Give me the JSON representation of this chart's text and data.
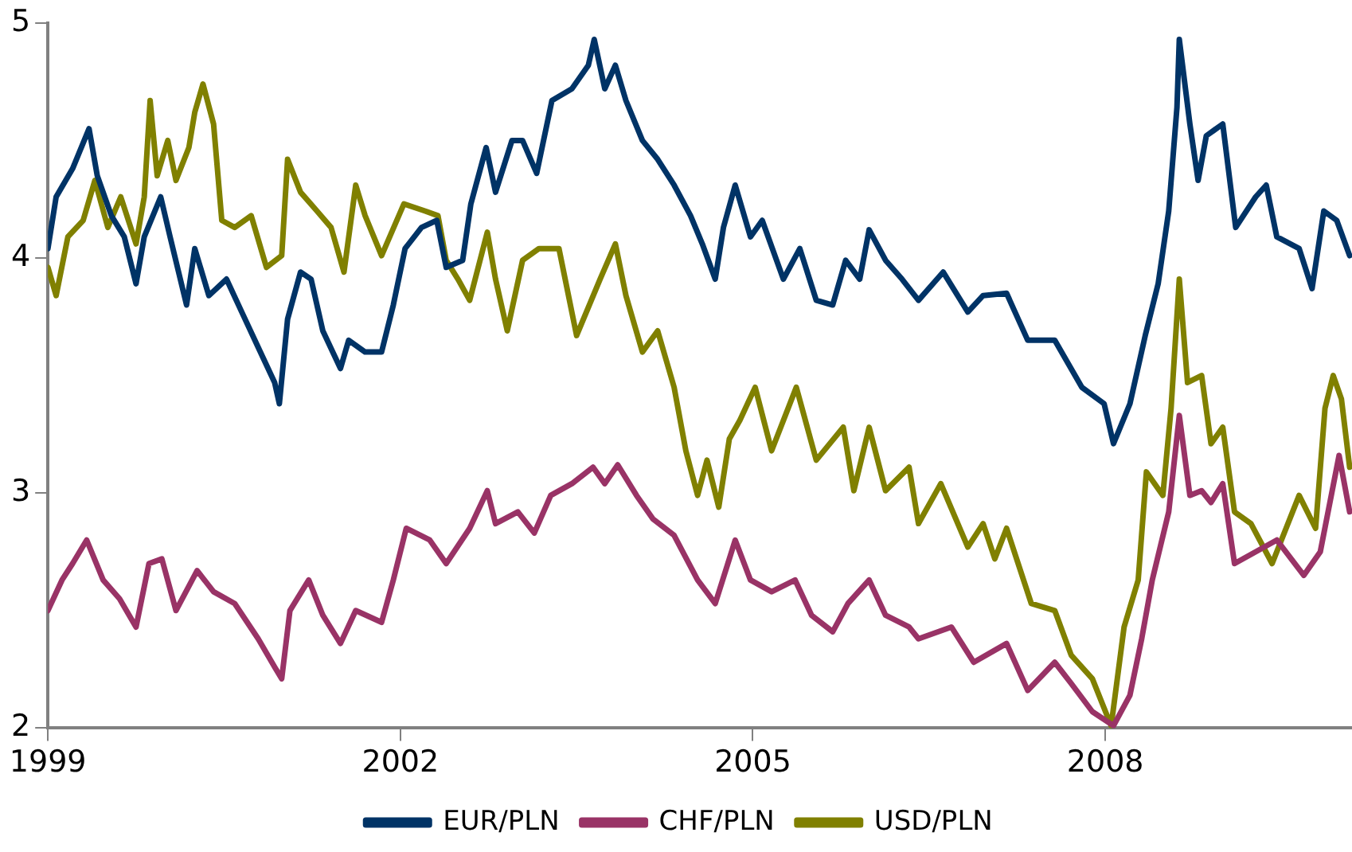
{
  "chart_data": {
    "type": "line",
    "xlim": [
      1999,
      2010.1
    ],
    "xticks": [
      1999,
      2002,
      2005,
      2008
    ],
    "ylim": [
      2,
      5
    ],
    "yticks": [
      2,
      3,
      4,
      5
    ],
    "grid": false,
    "legend": "bottom",
    "marker": "none",
    "line_style": "solid",
    "series": [
      {
        "name": "EUR/PLN",
        "color": "#003366",
        "x": [
          1999.0,
          1999.07,
          1999.21,
          1999.35,
          1999.42,
          1999.54,
          1999.65,
          1999.75,
          1999.82,
          1999.96,
          2000.04,
          2000.18,
          2000.25,
          2000.37,
          2000.52,
          2000.65,
          2000.79,
          2000.93,
          2000.97,
          2001.04,
          2001.15,
          2001.24,
          2001.34,
          2001.49,
          2001.56,
          2001.7,
          2001.84,
          2001.94,
          2002.04,
          2002.18,
          2002.31,
          2002.39,
          2002.53,
          2002.6,
          2002.73,
          2002.81,
          2002.95,
          2003.04,
          2003.16,
          2003.29,
          2003.46,
          2003.6,
          2003.65,
          2003.74,
          2003.83,
          2003.92,
          2004.06,
          2004.19,
          2004.33,
          2004.47,
          2004.57,
          2004.68,
          2004.75,
          2004.85,
          2004.98,
          2005.08,
          2005.26,
          2005.4,
          2005.54,
          2005.68,
          2005.79,
          2005.91,
          2005.99,
          2006.13,
          2006.27,
          2006.41,
          2006.62,
          2006.83,
          2006.96,
          2007.16,
          2007.34,
          2007.57,
          2007.8,
          2007.99,
          2008.07,
          2008.21,
          2008.34,
          2008.45,
          2008.54,
          2008.61,
          2008.63,
          2008.72,
          2008.79,
          2008.86,
          2009.0,
          2009.11,
          2009.28,
          2009.37,
          2009.46,
          2009.65,
          2009.76,
          2009.86,
          2009.97,
          2010.08
        ],
        "values": [
          4.04,
          4.26,
          4.38,
          4.55,
          4.35,
          4.18,
          4.09,
          3.89,
          4.09,
          4.26,
          4.09,
          3.8,
          4.04,
          3.84,
          3.91,
          3.77,
          3.62,
          3.47,
          3.38,
          3.74,
          3.94,
          3.91,
          3.69,
          3.53,
          3.65,
          3.6,
          3.6,
          3.8,
          4.04,
          4.13,
          4.16,
          3.96,
          3.99,
          4.23,
          4.47,
          4.28,
          4.5,
          4.5,
          4.36,
          4.67,
          4.72,
          4.82,
          4.93,
          4.72,
          4.82,
          4.67,
          4.5,
          4.42,
          4.31,
          4.18,
          4.06,
          3.91,
          4.13,
          4.31,
          4.09,
          4.16,
          3.91,
          4.04,
          3.82,
          3.8,
          3.99,
          3.91,
          4.12,
          3.99,
          3.91,
          3.82,
          3.94,
          3.77,
          3.84,
          3.85,
          3.65,
          3.65,
          3.45,
          3.38,
          3.21,
          3.38,
          3.67,
          3.89,
          4.2,
          4.64,
          4.93,
          4.57,
          4.33,
          4.52,
          4.57,
          4.13,
          4.26,
          4.31,
          4.09,
          4.04,
          3.87,
          4.2,
          4.16,
          4.01
        ]
      },
      {
        "name": "CHF/PLN",
        "color": "#993366",
        "x": [
          1999.0,
          1999.12,
          1999.21,
          1999.33,
          1999.47,
          1999.61,
          1999.75,
          1999.86,
          1999.97,
          2000.09,
          2000.27,
          2000.41,
          2000.59,
          2000.79,
          2000.93,
          2000.99,
          2001.06,
          2001.22,
          2001.34,
          2001.49,
          2001.62,
          2001.84,
          2001.94,
          2002.05,
          2002.25,
          2002.39,
          2002.59,
          2002.74,
          2002.81,
          2003.0,
          2003.14,
          2003.28,
          2003.46,
          2003.64,
          2003.74,
          2003.85,
          2004.01,
          2004.15,
          2004.33,
          2004.53,
          2004.68,
          2004.8,
          2004.85,
          2004.98,
          2005.16,
          2005.36,
          2005.5,
          2005.68,
          2005.81,
          2005.99,
          2006.13,
          2006.33,
          2006.41,
          2006.69,
          2006.88,
          2007.16,
          2007.34,
          2007.57,
          2007.71,
          2007.89,
          2008.07,
          2008.21,
          2008.31,
          2008.4,
          2008.54,
          2008.63,
          2008.72,
          2008.82,
          2008.9,
          2009.0,
          2009.1,
          2009.28,
          2009.46,
          2009.69,
          2009.83,
          2009.99,
          2010.08
        ],
        "values": [
          2.5,
          2.63,
          2.7,
          2.8,
          2.63,
          2.55,
          2.43,
          2.7,
          2.72,
          2.5,
          2.67,
          2.58,
          2.53,
          2.38,
          2.26,
          2.21,
          2.5,
          2.63,
          2.48,
          2.36,
          2.5,
          2.45,
          2.63,
          2.85,
          2.8,
          2.7,
          2.85,
          3.01,
          2.87,
          2.92,
          2.83,
          2.99,
          3.04,
          3.11,
          3.04,
          3.12,
          2.99,
          2.89,
          2.82,
          2.63,
          2.53,
          2.72,
          2.8,
          2.63,
          2.58,
          2.63,
          2.48,
          2.41,
          2.53,
          2.63,
          2.48,
          2.43,
          2.38,
          2.43,
          2.28,
          2.36,
          2.16,
          2.28,
          2.19,
          2.07,
          2.01,
          2.14,
          2.38,
          2.63,
          2.92,
          3.33,
          2.99,
          3.01,
          2.96,
          3.04,
          2.7,
          2.75,
          2.8,
          2.65,
          2.75,
          3.16,
          2.92
        ]
      },
      {
        "name": "USD/PLN",
        "color": "#808000",
        "x": [
          1999.0,
          1999.07,
          1999.17,
          1999.3,
          1999.4,
          1999.51,
          1999.62,
          1999.75,
          1999.82,
          1999.87,
          1999.93,
          2000.02,
          2000.09,
          2000.2,
          2000.25,
          2000.32,
          2000.41,
          2000.48,
          2000.59,
          2000.73,
          2000.86,
          2000.99,
          2001.04,
          2001.15,
          2001.29,
          2001.41,
          2001.52,
          2001.62,
          2001.7,
          2001.84,
          2002.03,
          2002.21,
          2002.32,
          2002.39,
          2002.49,
          2002.59,
          2002.74,
          2002.81,
          2002.91,
          2003.04,
          2003.18,
          2003.35,
          2003.5,
          2003.7,
          2003.83,
          2003.92,
          2004.06,
          2004.19,
          2004.33,
          2004.43,
          2004.53,
          2004.61,
          2004.71,
          2004.8,
          2004.89,
          2005.02,
          2005.16,
          2005.37,
          2005.54,
          2005.77,
          2005.86,
          2005.99,
          2006.13,
          2006.33,
          2006.41,
          2006.6,
          2006.83,
          2006.96,
          2007.06,
          2007.16,
          2007.37,
          2007.57,
          2007.71,
          2007.89,
          2008.05,
          2008.16,
          2008.28,
          2008.35,
          2008.49,
          2008.56,
          2008.63,
          2008.7,
          2008.82,
          2008.9,
          2009.0,
          2009.1,
          2009.24,
          2009.42,
          2009.65,
          2009.79,
          2009.87,
          2009.94,
          2010.01,
          2010.08
        ],
        "values": [
          3.96,
          3.84,
          4.09,
          4.16,
          4.33,
          4.13,
          4.26,
          4.06,
          4.26,
          4.67,
          4.35,
          4.5,
          4.33,
          4.47,
          4.62,
          4.74,
          4.57,
          4.16,
          4.13,
          4.18,
          3.96,
          4.01,
          4.42,
          4.28,
          4.2,
          4.13,
          3.94,
          4.31,
          4.18,
          4.01,
          4.23,
          4.2,
          4.18,
          3.99,
          3.91,
          3.82,
          4.11,
          3.91,
          3.69,
          3.99,
          4.04,
          4.04,
          3.67,
          3.91,
          4.06,
          3.84,
          3.6,
          3.69,
          3.45,
          3.18,
          2.99,
          3.14,
          2.94,
          3.23,
          3.31,
          3.45,
          3.18,
          3.45,
          3.14,
          3.28,
          3.01,
          3.28,
          3.01,
          3.11,
          2.87,
          3.04,
          2.77,
          2.87,
          2.72,
          2.85,
          2.53,
          2.5,
          2.31,
          2.21,
          2.01,
          2.43,
          2.63,
          3.09,
          2.99,
          3.36,
          3.91,
          3.47,
          3.5,
          3.21,
          3.28,
          2.92,
          2.87,
          2.7,
          2.99,
          2.85,
          3.36,
          3.5,
          3.4,
          3.11
        ]
      }
    ]
  }
}
